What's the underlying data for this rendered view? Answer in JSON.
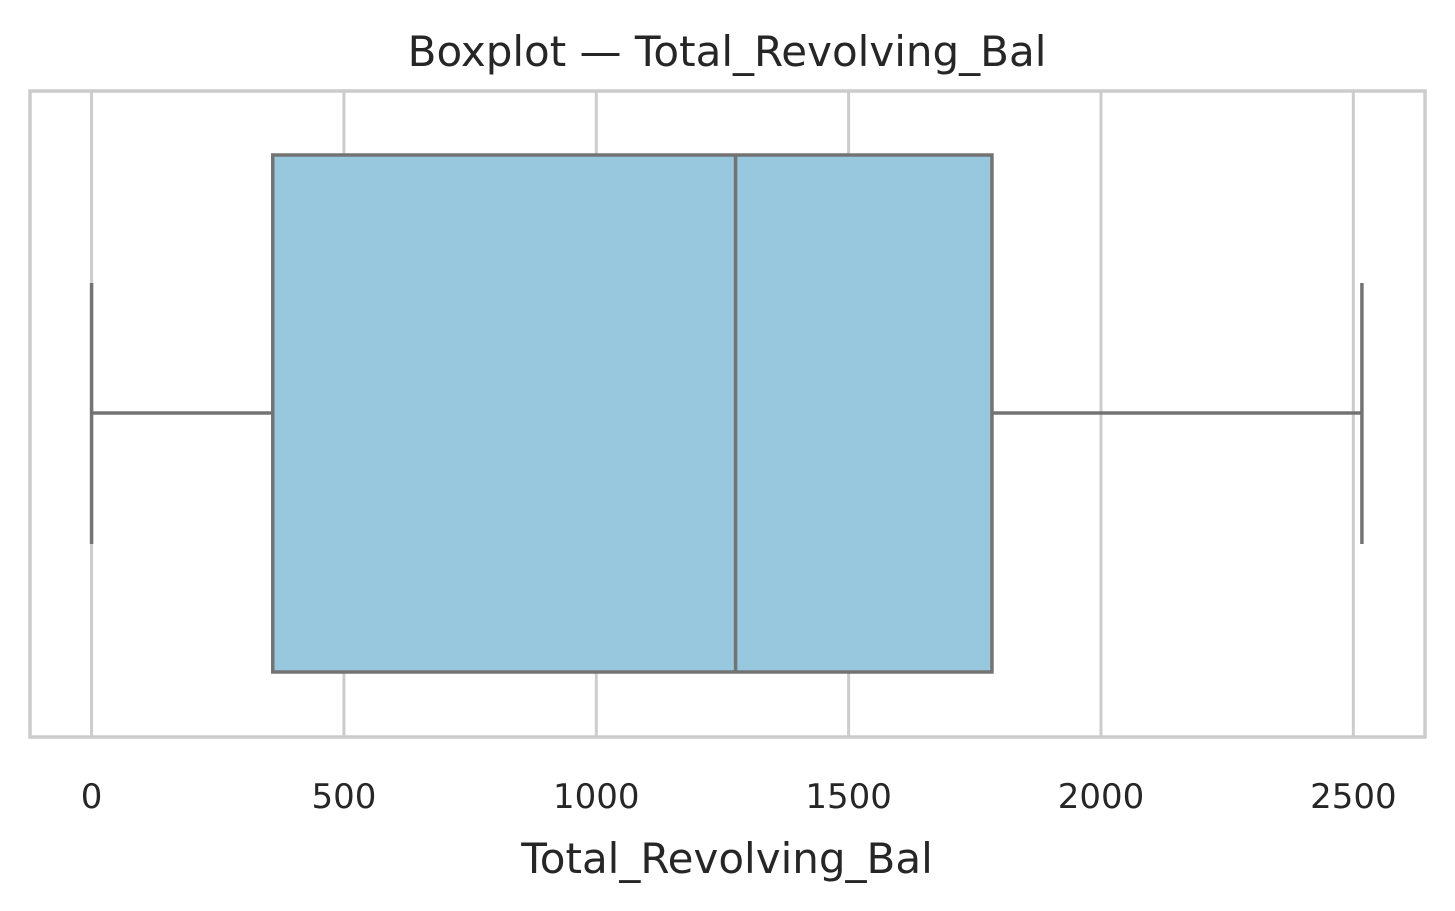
{
  "chart_data": {
    "type": "box",
    "title": "Boxplot — Total_Revolving_Bal",
    "xlabel": "Total_Revolving_Bal",
    "ylabel": "",
    "xlim": [
      -122,
      2642
    ],
    "xticks": [
      0,
      500,
      1000,
      1500,
      2000,
      2500
    ],
    "xtick_labels": [
      "0",
      "500",
      "1000",
      "1500",
      "2000",
      "2500"
    ],
    "grid": true,
    "box": {
      "whisker_low": 0,
      "q1": 359,
      "median": 1276,
      "q3": 1784,
      "whisker_high": 2517
    },
    "colors": {
      "box_fill": "#97c8de",
      "box_edge": "#737373",
      "grid": "#cccccc"
    }
  }
}
